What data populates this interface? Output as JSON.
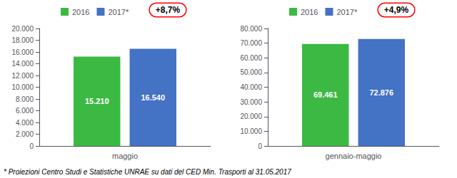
{
  "chart_data": [
    {
      "type": "bar",
      "categories": [
        "maggio"
      ],
      "series": [
        {
          "name": "2016",
          "color": "#3cb943",
          "values": [
            15210
          ],
          "value_labels": [
            "15.210"
          ]
        },
        {
          "name": "2017*",
          "color": "#4472c4",
          "values": [
            16540
          ],
          "value_labels": [
            "16.540"
          ]
        }
      ],
      "ylim": [
        0,
        20000
      ],
      "yticks": [
        0,
        {
          "value": 2000,
          "label": "2.000"
        },
        {
          "value": 4000,
          "label": "4.000"
        },
        {
          "value": 6000,
          "label": "6.000"
        },
        {
          "value": 8000,
          "label": "8.000"
        },
        {
          "value": 10000,
          "label": "10.000"
        },
        {
          "value": 12000,
          "label": "12.000"
        },
        {
          "value": 14000,
          "label": "14.000"
        },
        {
          "value": 16000,
          "label": "16.000"
        },
        {
          "value": 18000,
          "label": "18.000"
        },
        {
          "value": 20000,
          "label": "20.000"
        }
      ],
      "annotations": [
        "+8,7%"
      ],
      "data_labels": true,
      "legend": "top",
      "grid": false
    },
    {
      "type": "bar",
      "categories": [
        "gennaio-maggio"
      ],
      "series": [
        {
          "name": "2016",
          "color": "#3cb943",
          "values": [
            69461
          ],
          "value_labels": [
            "69.461"
          ]
        },
        {
          "name": "2017*",
          "color": "#4472c4",
          "values": [
            72876
          ],
          "value_labels": [
            "72.876"
          ]
        }
      ],
      "ylim": [
        0,
        80000
      ],
      "yticks": [
        0,
        {
          "value": 10000,
          "label": "10.000"
        },
        {
          "value": 20000,
          "label": "20.000"
        },
        {
          "value": 30000,
          "label": "30.000"
        },
        {
          "value": 40000,
          "label": "40.000"
        },
        {
          "value": 50000,
          "label": "50.000"
        },
        {
          "value": 60000,
          "label": "60.000"
        },
        {
          "value": 70000,
          "label": "70.000"
        },
        {
          "value": 80000,
          "label": "80.000"
        }
      ],
      "annotations": [
        "+4,9%"
      ],
      "data_labels": true,
      "legend": "top",
      "grid": false
    }
  ],
  "footer": "* Proiezioni Centro Studi e Statistiche UNRAE su dati del CED Min. Trasporti al 31.05.2017"
}
